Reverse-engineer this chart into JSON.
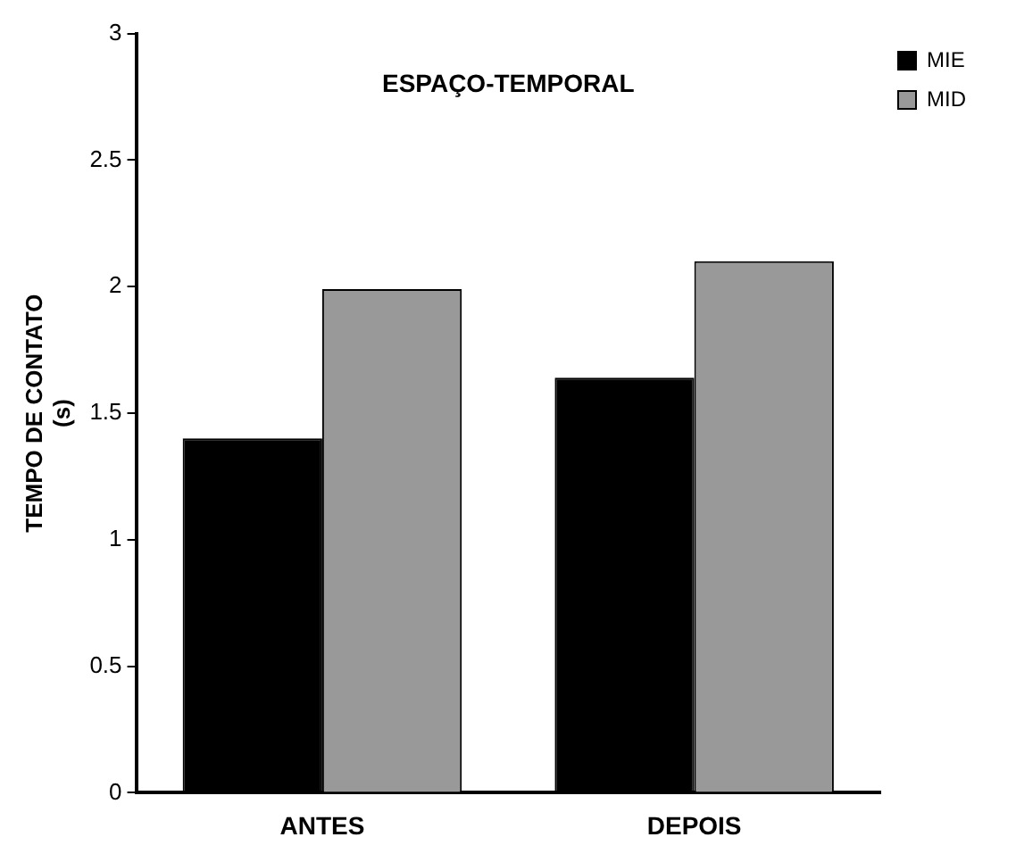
{
  "chart_data": {
    "type": "bar",
    "title": "ESPAÇO-TEMPORAL",
    "ylabel": "TEMPO DE CONTATO (s)",
    "categories": [
      "ANTES",
      "DEPOIS"
    ],
    "series": [
      {
        "name": "MIE",
        "color": "#000000",
        "values": [
          1.4,
          1.64
        ]
      },
      {
        "name": "MID",
        "color": "#999999",
        "values": [
          1.99,
          2.1
        ]
      }
    ],
    "ylim": [
      0,
      3
    ],
    "yticks": [
      0,
      0.5,
      1,
      1.5,
      2,
      2.5,
      3
    ],
    "grid": false,
    "legend": "top right"
  }
}
